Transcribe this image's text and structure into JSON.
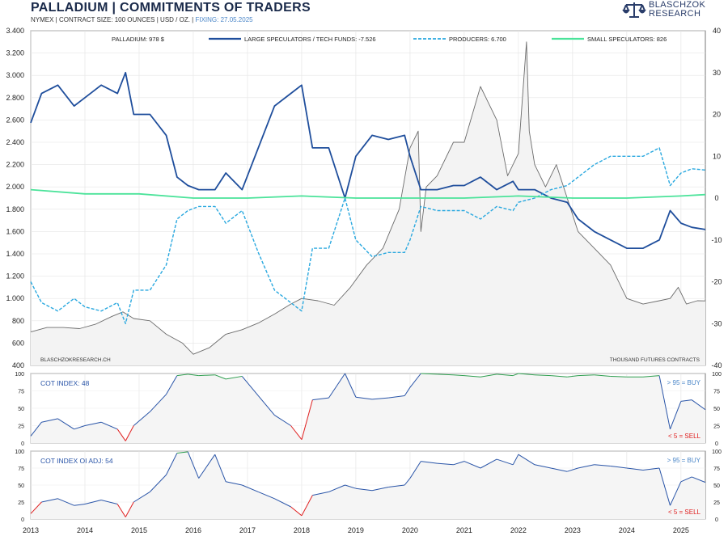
{
  "header": {
    "title": "PALLADIUM  |  COMMITMENTS OF TRADERS",
    "subtitle_main": "NYMEX | CONTRACT SIZE: 100 OUNCES | USD / OZ. | ",
    "subtitle_fixing": "FIXING: 27.05.2025"
  },
  "logo": {
    "line1": "BLASCHZOK",
    "line2": "RESEARCH"
  },
  "colors": {
    "price": "#6b6b6b",
    "large_specs": "#1f4e9c",
    "producers": "#29a8df",
    "small_specs": "#4be39a",
    "cot_line": "#2a55a8",
    "buy": "#2e9e4f",
    "sell": "#e02020",
    "buy_label": "#4a86c8",
    "sell_label": "#e02020"
  },
  "chart_data": [
    {
      "type": "line",
      "panel": "main",
      "x_axis": {
        "tick_labels": [
          "2013",
          "2014",
          "2015",
          "2016",
          "2017",
          "2018",
          "2019",
          "2020",
          "2021",
          "2022",
          "2023",
          "2024",
          "2025"
        ],
        "range": [
          2013.0,
          2025.45
        ]
      },
      "y_left": {
        "range": [
          400,
          3400
        ],
        "tick_labels": [
          "400",
          "600",
          "800",
          "1.000",
          "1.200",
          "1.400",
          "1.600",
          "1.800",
          "2.000",
          "2.200",
          "2.400",
          "2.600",
          "2.800",
          "3.000",
          "3.200",
          "3.400"
        ]
      },
      "y_right": {
        "range": [
          -40,
          40
        ],
        "tick_labels": [
          "-40",
          "-30",
          "-20",
          "-10",
          "0",
          "10",
          "20",
          "30",
          "40"
        ]
      },
      "legend": [
        "PALLADIUM: 978 $",
        "LARGE SPECULATORS / TECH FUNDS: -7.526",
        "PRODUCERS: 6.700",
        "SMALL SPECULATORS: 826"
      ],
      "annotations": {
        "source": "BLASCHZOKRESEARCH.CH",
        "units": "THOUSAND  FUTURES CONTRACTS"
      },
      "series": [
        {
          "name": "PALLADIUM",
          "axis": "left",
          "x": [
            2013.0,
            2013.3,
            2013.6,
            2013.9,
            2014.2,
            2014.5,
            2014.7,
            2014.9,
            2015.2,
            2015.5,
            2015.8,
            2016.0,
            2016.3,
            2016.6,
            2016.9,
            2017.2,
            2017.5,
            2017.8,
            2018.0,
            2018.3,
            2018.6,
            2018.9,
            2019.2,
            2019.5,
            2019.8,
            2020.0,
            2020.15,
            2020.2,
            2020.3,
            2020.5,
            2020.8,
            2021.0,
            2021.3,
            2021.4,
            2021.6,
            2021.8,
            2022.0,
            2022.15,
            2022.2,
            2022.3,
            2022.5,
            2022.7,
            2022.9,
            2023.1,
            2023.4,
            2023.7,
            2024.0,
            2024.3,
            2024.6,
            2024.8,
            2024.95,
            2025.1,
            2025.3,
            2025.45
          ],
          "values": [
            700,
            740,
            740,
            730,
            770,
            840,
            880,
            820,
            800,
            680,
            600,
            500,
            560,
            680,
            720,
            780,
            860,
            950,
            1000,
            980,
            940,
            1100,
            1300,
            1450,
            1800,
            2350,
            2500,
            1600,
            2000,
            2100,
            2400,
            2400,
            2900,
            2800,
            2600,
            2100,
            2300,
            3300,
            2500,
            2200,
            2000,
            2200,
            1900,
            1600,
            1450,
            1300,
            1000,
            950,
            980,
            1000,
            1100,
            950,
            980,
            978
          ]
        },
        {
          "name": "LARGE SPECULATORS / TECH FUNDS",
          "axis": "right",
          "x": [
            2013.0,
            2013.2,
            2013.5,
            2013.8,
            2014.0,
            2014.3,
            2014.6,
            2014.75,
            2014.9,
            2015.2,
            2015.5,
            2015.7,
            2015.9,
            2016.1,
            2016.4,
            2016.6,
            2016.9,
            2017.2,
            2017.5,
            2017.8,
            2018.0,
            2018.2,
            2018.5,
            2018.8,
            2019.0,
            2019.3,
            2019.6,
            2019.9,
            2020.0,
            2020.2,
            2020.5,
            2020.8,
            2021.0,
            2021.3,
            2021.6,
            2021.9,
            2022.0,
            2022.3,
            2022.6,
            2022.9,
            2023.1,
            2023.4,
            2023.7,
            2024.0,
            2024.3,
            2024.6,
            2024.8,
            2025.0,
            2025.2,
            2025.45
          ],
          "values": [
            18,
            25,
            27,
            22,
            24,
            27,
            25,
            30,
            20,
            20,
            15,
            5,
            3,
            2,
            2,
            6,
            2,
            12,
            22,
            25,
            27,
            12,
            12,
            0,
            10,
            15,
            14,
            15,
            10,
            2,
            2,
            3,
            3,
            5,
            2,
            4,
            2,
            2,
            0,
            -1,
            -5,
            -8,
            -10,
            -12,
            -12,
            -10,
            -3,
            -6,
            -7,
            -7.526
          ]
        },
        {
          "name": "PRODUCERS",
          "axis": "right",
          "x": [
            2013.0,
            2013.2,
            2013.5,
            2013.8,
            2014.0,
            2014.3,
            2014.6,
            2014.75,
            2014.9,
            2015.2,
            2015.5,
            2015.7,
            2015.9,
            2016.1,
            2016.4,
            2016.6,
            2016.9,
            2017.2,
            2017.5,
            2017.8,
            2018.0,
            2018.2,
            2018.5,
            2018.8,
            2019.0,
            2019.3,
            2019.6,
            2019.9,
            2020.0,
            2020.2,
            2020.5,
            2020.8,
            2021.0,
            2021.3,
            2021.6,
            2021.9,
            2022.0,
            2022.3,
            2022.6,
            2022.9,
            2023.1,
            2023.4,
            2023.7,
            2024.0,
            2024.3,
            2024.6,
            2024.8,
            2025.0,
            2025.2,
            2025.45
          ],
          "values": [
            -20,
            -25,
            -27,
            -24,
            -26,
            -27,
            -25,
            -30,
            -22,
            -22,
            -16,
            -5,
            -3,
            -2,
            -2,
            -6,
            -3,
            -13,
            -22,
            -25,
            -27,
            -12,
            -12,
            0,
            -10,
            -14,
            -13,
            -13,
            -10,
            -2,
            -3,
            -3,
            -3,
            -5,
            -2,
            -3,
            -1,
            0,
            2,
            3,
            5,
            8,
            10,
            10,
            10,
            12,
            3,
            6,
            7,
            6.7
          ]
        },
        {
          "name": "SMALL SPECULATORS",
          "axis": "right",
          "x": [
            2013.0,
            2014.0,
            2015.0,
            2016.0,
            2017.0,
            2018.0,
            2019.0,
            2020.0,
            2021.0,
            2022.0,
            2023.0,
            2024.0,
            2025.0,
            2025.45
          ],
          "values": [
            2,
            1,
            1,
            0,
            0,
            0.5,
            0,
            0,
            0,
            0.5,
            0,
            0,
            0.5,
            0.826
          ]
        }
      ]
    },
    {
      "type": "line",
      "panel": "cot_index",
      "title": "COT INDEX: 48",
      "y_range": [
        0,
        100
      ],
      "y_tick_labels": [
        "0",
        "25",
        "50",
        "75",
        "100"
      ],
      "thresholds": {
        "buy": 95,
        "sell": 5
      },
      "labels": {
        "buy": "> 95 = BUY",
        "sell": "< 5 = SELL"
      },
      "x": [
        2013.0,
        2013.2,
        2013.5,
        2013.8,
        2014.0,
        2014.3,
        2014.6,
        2014.75,
        2014.9,
        2015.2,
        2015.5,
        2015.7,
        2015.9,
        2016.1,
        2016.4,
        2016.6,
        2016.9,
        2017.2,
        2017.5,
        2017.8,
        2018.0,
        2018.2,
        2018.5,
        2018.8,
        2019.0,
        2019.3,
        2019.6,
        2019.9,
        2020.0,
        2020.2,
        2020.5,
        2020.8,
        2021.0,
        2021.3,
        2021.6,
        2021.9,
        2022.0,
        2022.3,
        2022.6,
        2022.9,
        2023.1,
        2023.4,
        2023.7,
        2024.0,
        2024.3,
        2024.6,
        2024.8,
        2025.0,
        2025.2,
        2025.45
      ],
      "values": [
        10,
        30,
        35,
        20,
        25,
        30,
        20,
        3,
        25,
        45,
        70,
        97,
        99,
        97,
        98,
        92,
        96,
        68,
        40,
        25,
        5,
        62,
        65,
        100,
        66,
        63,
        65,
        68,
        80,
        100,
        99,
        98,
        97,
        95,
        99,
        97,
        100,
        98,
        97,
        95,
        97,
        98,
        96,
        95,
        95,
        97,
        20,
        60,
        62,
        48
      ]
    },
    {
      "type": "line",
      "panel": "cot_index_oi_adj",
      "title": "COT INDEX OI ADJ: 54",
      "y_range": [
        0,
        100
      ],
      "y_tick_labels": [
        "0",
        "25",
        "50",
        "75",
        "100"
      ],
      "thresholds": {
        "buy": 95,
        "sell": 5
      },
      "labels": {
        "buy": "> 95 = BUY",
        "sell": "< 5 = SELL"
      },
      "x": [
        2013.0,
        2013.2,
        2013.5,
        2013.8,
        2014.0,
        2014.3,
        2014.6,
        2014.75,
        2014.9,
        2015.2,
        2015.5,
        2015.7,
        2015.9,
        2016.1,
        2016.4,
        2016.6,
        2016.9,
        2017.2,
        2017.5,
        2017.8,
        2018.0,
        2018.2,
        2018.5,
        2018.8,
        2019.0,
        2019.3,
        2019.6,
        2019.9,
        2020.0,
        2020.2,
        2020.5,
        2020.8,
        2021.0,
        2021.3,
        2021.6,
        2021.9,
        2022.0,
        2022.3,
        2022.6,
        2022.9,
        2023.1,
        2023.4,
        2023.7,
        2024.0,
        2024.3,
        2024.6,
        2024.8,
        2025.0,
        2025.2,
        2025.45
      ],
      "values": [
        8,
        25,
        30,
        20,
        22,
        28,
        22,
        3,
        25,
        40,
        65,
        97,
        99,
        60,
        95,
        55,
        50,
        40,
        30,
        18,
        5,
        35,
        40,
        50,
        45,
        42,
        47,
        50,
        60,
        85,
        82,
        80,
        85,
        75,
        88,
        80,
        95,
        80,
        75,
        70,
        75,
        80,
        78,
        75,
        72,
        75,
        20,
        55,
        62,
        54
      ]
    }
  ]
}
